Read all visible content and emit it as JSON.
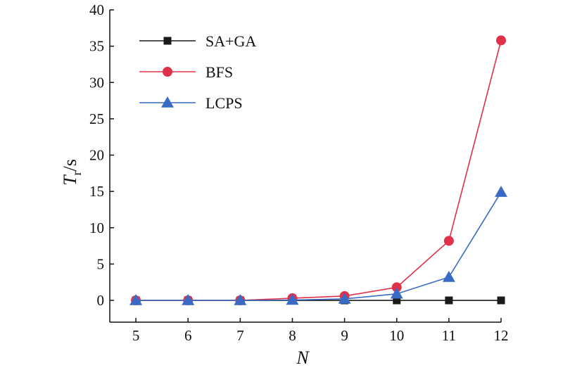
{
  "chart_data": {
    "type": "line",
    "x": [
      5,
      6,
      7,
      8,
      9,
      10,
      11,
      12
    ],
    "xlabel": "N",
    "ylabel_main": "T",
    "ylabel_sub": "r",
    "ylabel_unit": "/s",
    "xlim": [
      4.5,
      12
    ],
    "ylim": [
      -3,
      40
    ],
    "xticks": [
      5,
      6,
      7,
      8,
      9,
      10,
      11,
      12
    ],
    "yticks": [
      0,
      5,
      10,
      15,
      20,
      25,
      30,
      35,
      40
    ],
    "grid": false,
    "legend_position": "top-left",
    "series": [
      {
        "name": "SA+GA",
        "color": "#1a1a1a",
        "marker": "square",
        "values": [
          0,
          0,
          0,
          0,
          0,
          0,
          0,
          0
        ]
      },
      {
        "name": "BFS",
        "color": "#e0314a",
        "marker": "circle",
        "values": [
          0,
          0,
          0,
          0.3,
          0.6,
          1.8,
          8.2,
          35.8
        ]
      },
      {
        "name": "LCPS",
        "color": "#3a6bc4",
        "marker": "triangle",
        "values": [
          0,
          0,
          0,
          0.05,
          0.2,
          0.9,
          3.2,
          14.9
        ]
      }
    ]
  }
}
